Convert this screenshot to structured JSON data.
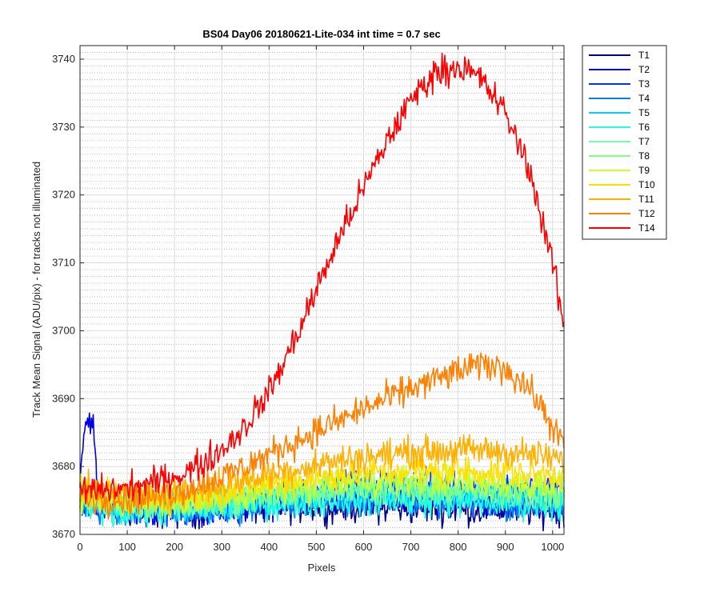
{
  "chart_data": {
    "type": "line",
    "title": "BS04 Day06 20180621-Lite-034 int time = 0.7 sec",
    "xlabel": "Pixels",
    "ylabel": "Track Mean Signal (ADU/pix) - for tracks not illuminated",
    "xlim": [
      0,
      1024
    ],
    "ylim": [
      3670,
      3742
    ],
    "xticks": [
      0,
      100,
      200,
      300,
      400,
      500,
      600,
      700,
      800,
      900,
      1000
    ],
    "yticks": [
      3670,
      3680,
      3690,
      3700,
      3710,
      3720,
      3730,
      3740
    ],
    "grid": true,
    "minor_grid": true,
    "legend_position": "outside-right",
    "x": [
      0,
      50,
      100,
      150,
      200,
      250,
      300,
      350,
      400,
      450,
      500,
      550,
      600,
      650,
      700,
      750,
      800,
      850,
      900,
      950,
      1000,
      1024
    ],
    "noise_amplitude": 1.6,
    "series": [
      {
        "name": "T1",
        "color": "#00008f",
        "values": [
          3673.8,
          3673.5,
          3673.3,
          3673.2,
          3673.2,
          3673.4,
          3673.6,
          3673.8,
          3673.9,
          3674,
          3674,
          3674,
          3674,
          3673.9,
          3673.8,
          3673.8,
          3673.7,
          3673.6,
          3673.6,
          3673.5,
          3673.4,
          3673.3
        ]
      },
      {
        "name": "T2",
        "color": "#0000df",
        "values": [
          3674.5,
          3674,
          3673.7,
          3673.5,
          3673.5,
          3673.7,
          3674,
          3674.3,
          3674.6,
          3674.8,
          3675,
          3675,
          3675,
          3675,
          3674.9,
          3674.8,
          3674.7,
          3674.6,
          3674.5,
          3674.4,
          3674.3,
          3674.2
        ]
      },
      {
        "name": "T3",
        "color": "#0030ff",
        "values": [
          3675,
          3674.5,
          3674.2,
          3674,
          3674,
          3674.3,
          3674.7,
          3675.2,
          3675.7,
          3676.2,
          3676.7,
          3677,
          3677.2,
          3677.3,
          3677.3,
          3677.2,
          3677.1,
          3677,
          3676.8,
          3676.7,
          3676.5,
          3676.4
        ]
      },
      {
        "name": "T4",
        "color": "#0080ff",
        "values": [
          3674.3,
          3673.8,
          3673.5,
          3673.3,
          3673.3,
          3673.5,
          3673.8,
          3674.1,
          3674.4,
          3674.6,
          3674.8,
          3674.9,
          3675,
          3675,
          3674.9,
          3674.8,
          3674.7,
          3674.6,
          3674.5,
          3674.4,
          3674.3,
          3674.2
        ]
      },
      {
        "name": "T5",
        "color": "#00cfff",
        "values": [
          3674.8,
          3674.3,
          3674,
          3673.9,
          3673.9,
          3674.1,
          3674.4,
          3674.8,
          3675.2,
          3675.5,
          3675.8,
          3676,
          3676.1,
          3676.1,
          3676,
          3675.9,
          3675.8,
          3675.7,
          3675.6,
          3675.5,
          3675.4,
          3675.3
        ]
      },
      {
        "name": "T6",
        "color": "#20ffdf",
        "values": [
          3674.2,
          3673.7,
          3673.4,
          3673.3,
          3673.3,
          3673.5,
          3673.9,
          3674.2,
          3674.5,
          3674.7,
          3674.9,
          3675,
          3675.1,
          3675.1,
          3675,
          3674.9,
          3674.8,
          3674.7,
          3674.6,
          3674.5,
          3674.4,
          3674.3
        ]
      },
      {
        "name": "T7",
        "color": "#70ffb0",
        "values": [
          3675,
          3674.6,
          3674.3,
          3674.2,
          3674.2,
          3674.4,
          3674.8,
          3675.2,
          3675.6,
          3676,
          3676.3,
          3676.5,
          3676.6,
          3676.6,
          3676.5,
          3676.4,
          3676.3,
          3676.2,
          3676.1,
          3676,
          3675.9,
          3675.8
        ]
      },
      {
        "name": "T8",
        "color": "#80ff80",
        "values": [
          3675.2,
          3674.8,
          3674.5,
          3674.4,
          3674.4,
          3674.7,
          3675.1,
          3675.5,
          3675.9,
          3676.3,
          3676.6,
          3676.8,
          3676.9,
          3676.9,
          3676.9,
          3676.8,
          3676.7,
          3676.6,
          3676.5,
          3676.4,
          3676.3,
          3676.2
        ]
      },
      {
        "name": "T9",
        "color": "#cfff30",
        "values": [
          3675.5,
          3675.1,
          3674.8,
          3674.7,
          3674.8,
          3675.1,
          3675.6,
          3676.1,
          3676.6,
          3677,
          3677.4,
          3677.7,
          3677.9,
          3678,
          3678,
          3678,
          3677.9,
          3677.8,
          3677.6,
          3677.5,
          3677.3,
          3677.2
        ]
      },
      {
        "name": "T10",
        "color": "#ffdf00",
        "values": [
          3676,
          3675.6,
          3675.3,
          3675.2,
          3675.3,
          3675.7,
          3676.2,
          3676.8,
          3677.4,
          3677.9,
          3678.4,
          3678.8,
          3679.1,
          3679.3,
          3679.4,
          3679.4,
          3679.4,
          3679.3,
          3679.2,
          3679,
          3678.8,
          3678.6
        ]
      },
      {
        "name": "T11",
        "color": "#ffb000",
        "values": [
          3676.5,
          3676.1,
          3675.9,
          3675.9,
          3676.1,
          3676.6,
          3677.3,
          3678.1,
          3678.9,
          3679.6,
          3680.3,
          3680.9,
          3681.4,
          3681.8,
          3682.1,
          3682.3,
          3682.4,
          3682.4,
          3682.2,
          3681.8,
          3681.2,
          3680.8
        ]
      },
      {
        "name": "T12",
        "color": "#ff8000",
        "values": [
          3675.5,
          3675.2,
          3675.2,
          3675.5,
          3676.2,
          3677.2,
          3678.5,
          3680,
          3681.8,
          3683.5,
          3685.2,
          3686.8,
          3688.5,
          3690,
          3691.5,
          3692.8,
          3694,
          3695,
          3694.5,
          3691.5,
          3686,
          3683
        ]
      },
      {
        "name": "T14",
        "color": "#ff0000",
        "values": [
          3676.5,
          3676.5,
          3676.8,
          3677.5,
          3678.5,
          3680,
          3682.5,
          3686,
          3691,
          3698,
          3706,
          3714,
          3721,
          3728,
          3734,
          3738,
          3739,
          3737,
          3732,
          3724,
          3710,
          3700.5
        ]
      }
    ],
    "spike": {
      "series": "T2",
      "x": [
        0,
        5,
        10,
        15,
        20,
        25,
        28,
        32,
        36,
        40
      ],
      "values": [
        3678,
        3683,
        3686,
        3686.5,
        3687,
        3687.5,
        3686,
        3681,
        3677,
        3675.5
      ]
    }
  }
}
